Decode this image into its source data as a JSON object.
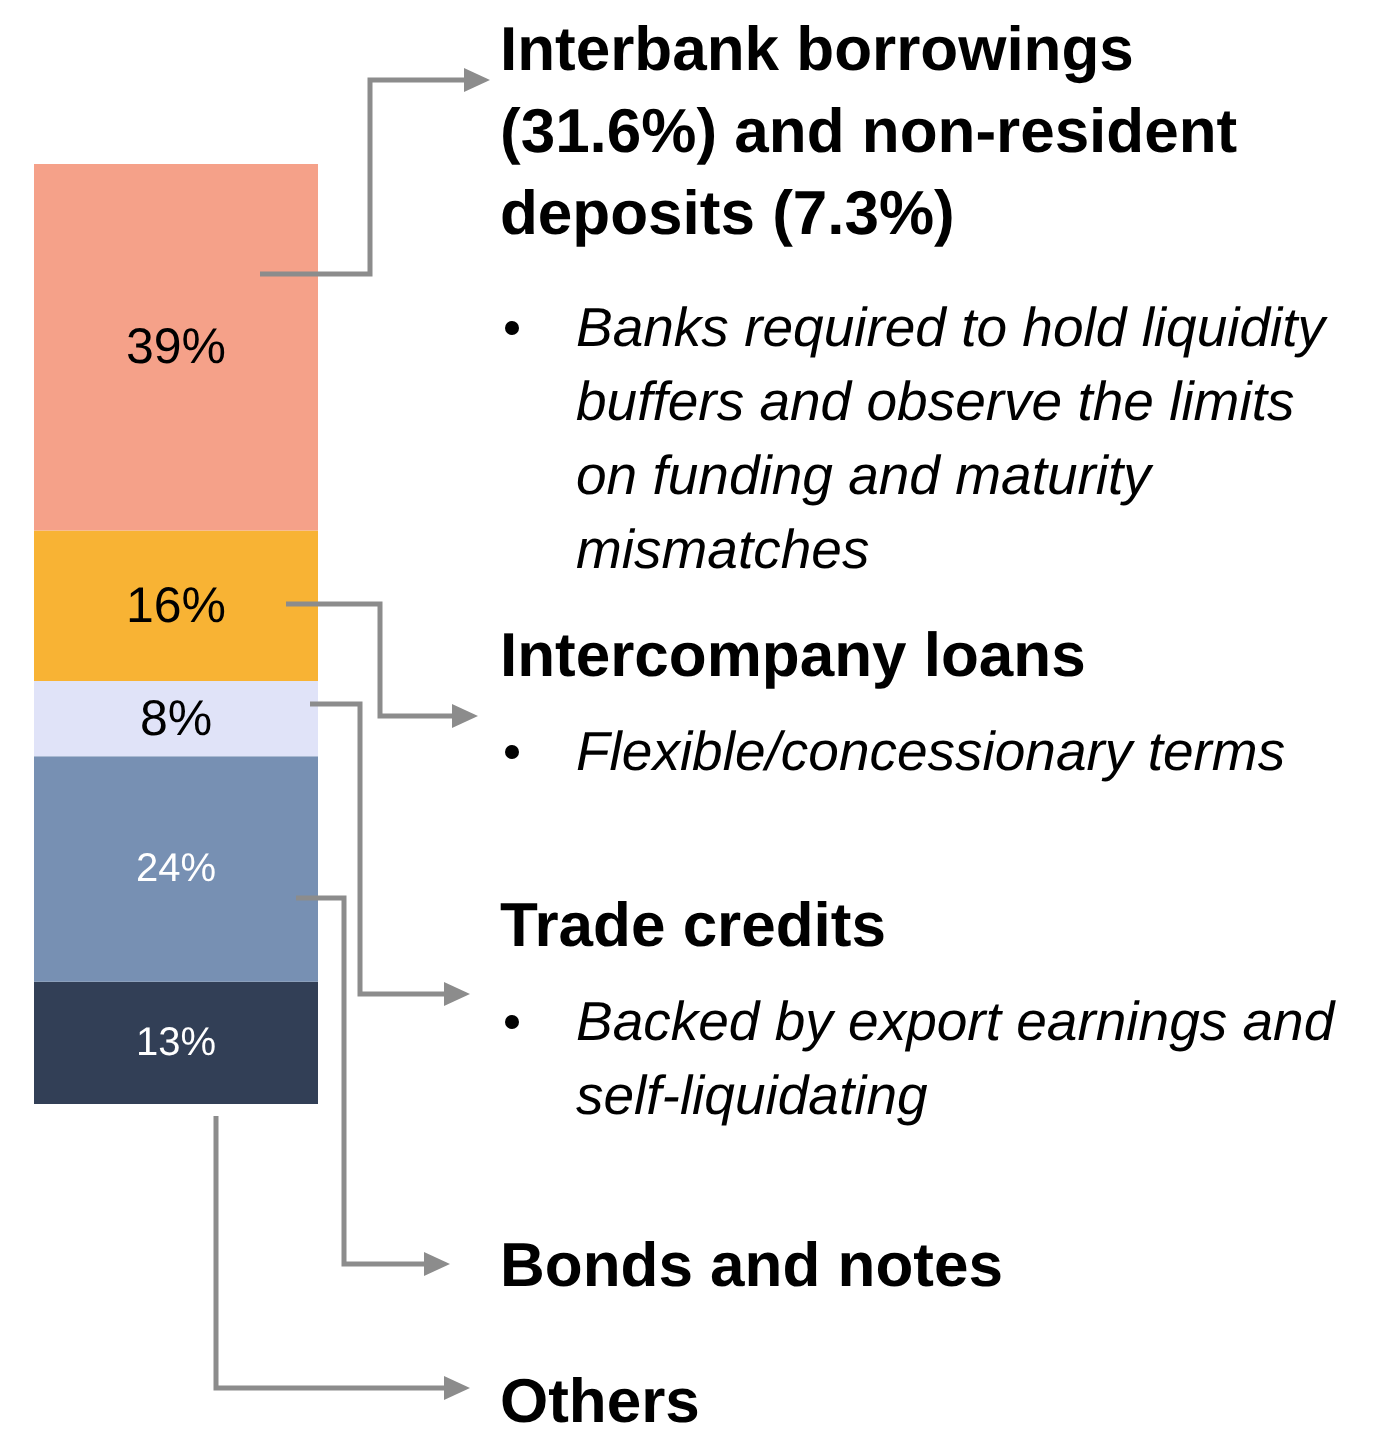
{
  "chart_data": {
    "type": "bar",
    "stacked": true,
    "categories": [
      null
    ],
    "data_labels": false,
    "series": [
      {
        "name": "Others",
        "color": "#323f56",
        "values": [
          13
        ],
        "value_labels": [
          "13%"
        ]
      },
      {
        "name": "Bonds and notes",
        "color": "#7790b3",
        "values": [
          24
        ],
        "value_labels": [
          "24%"
        ]
      },
      {
        "name": "Trade credits",
        "color": "#e0e3f8",
        "values": [
          8
        ],
        "value_labels": [
          "8%"
        ]
      },
      {
        "name": "Intercompany loans",
        "color": "#f8b334",
        "values": [
          16
        ],
        "value_labels": [
          "16%"
        ]
      },
      {
        "name": "Interbank borrowings (31.6%) and non-resident deposits (7.3%)",
        "color": "#f5a189",
        "values": [
          39
        ],
        "value_labels": [
          "39%"
        ]
      }
    ],
    "annotations": [
      "Banks required to hold liquidity buffers and observe the limits on funding and maturity mismatches",
      "Flexible/concessionary terms",
      "Backed by export earnings and self-liquidating"
    ]
  }
}
